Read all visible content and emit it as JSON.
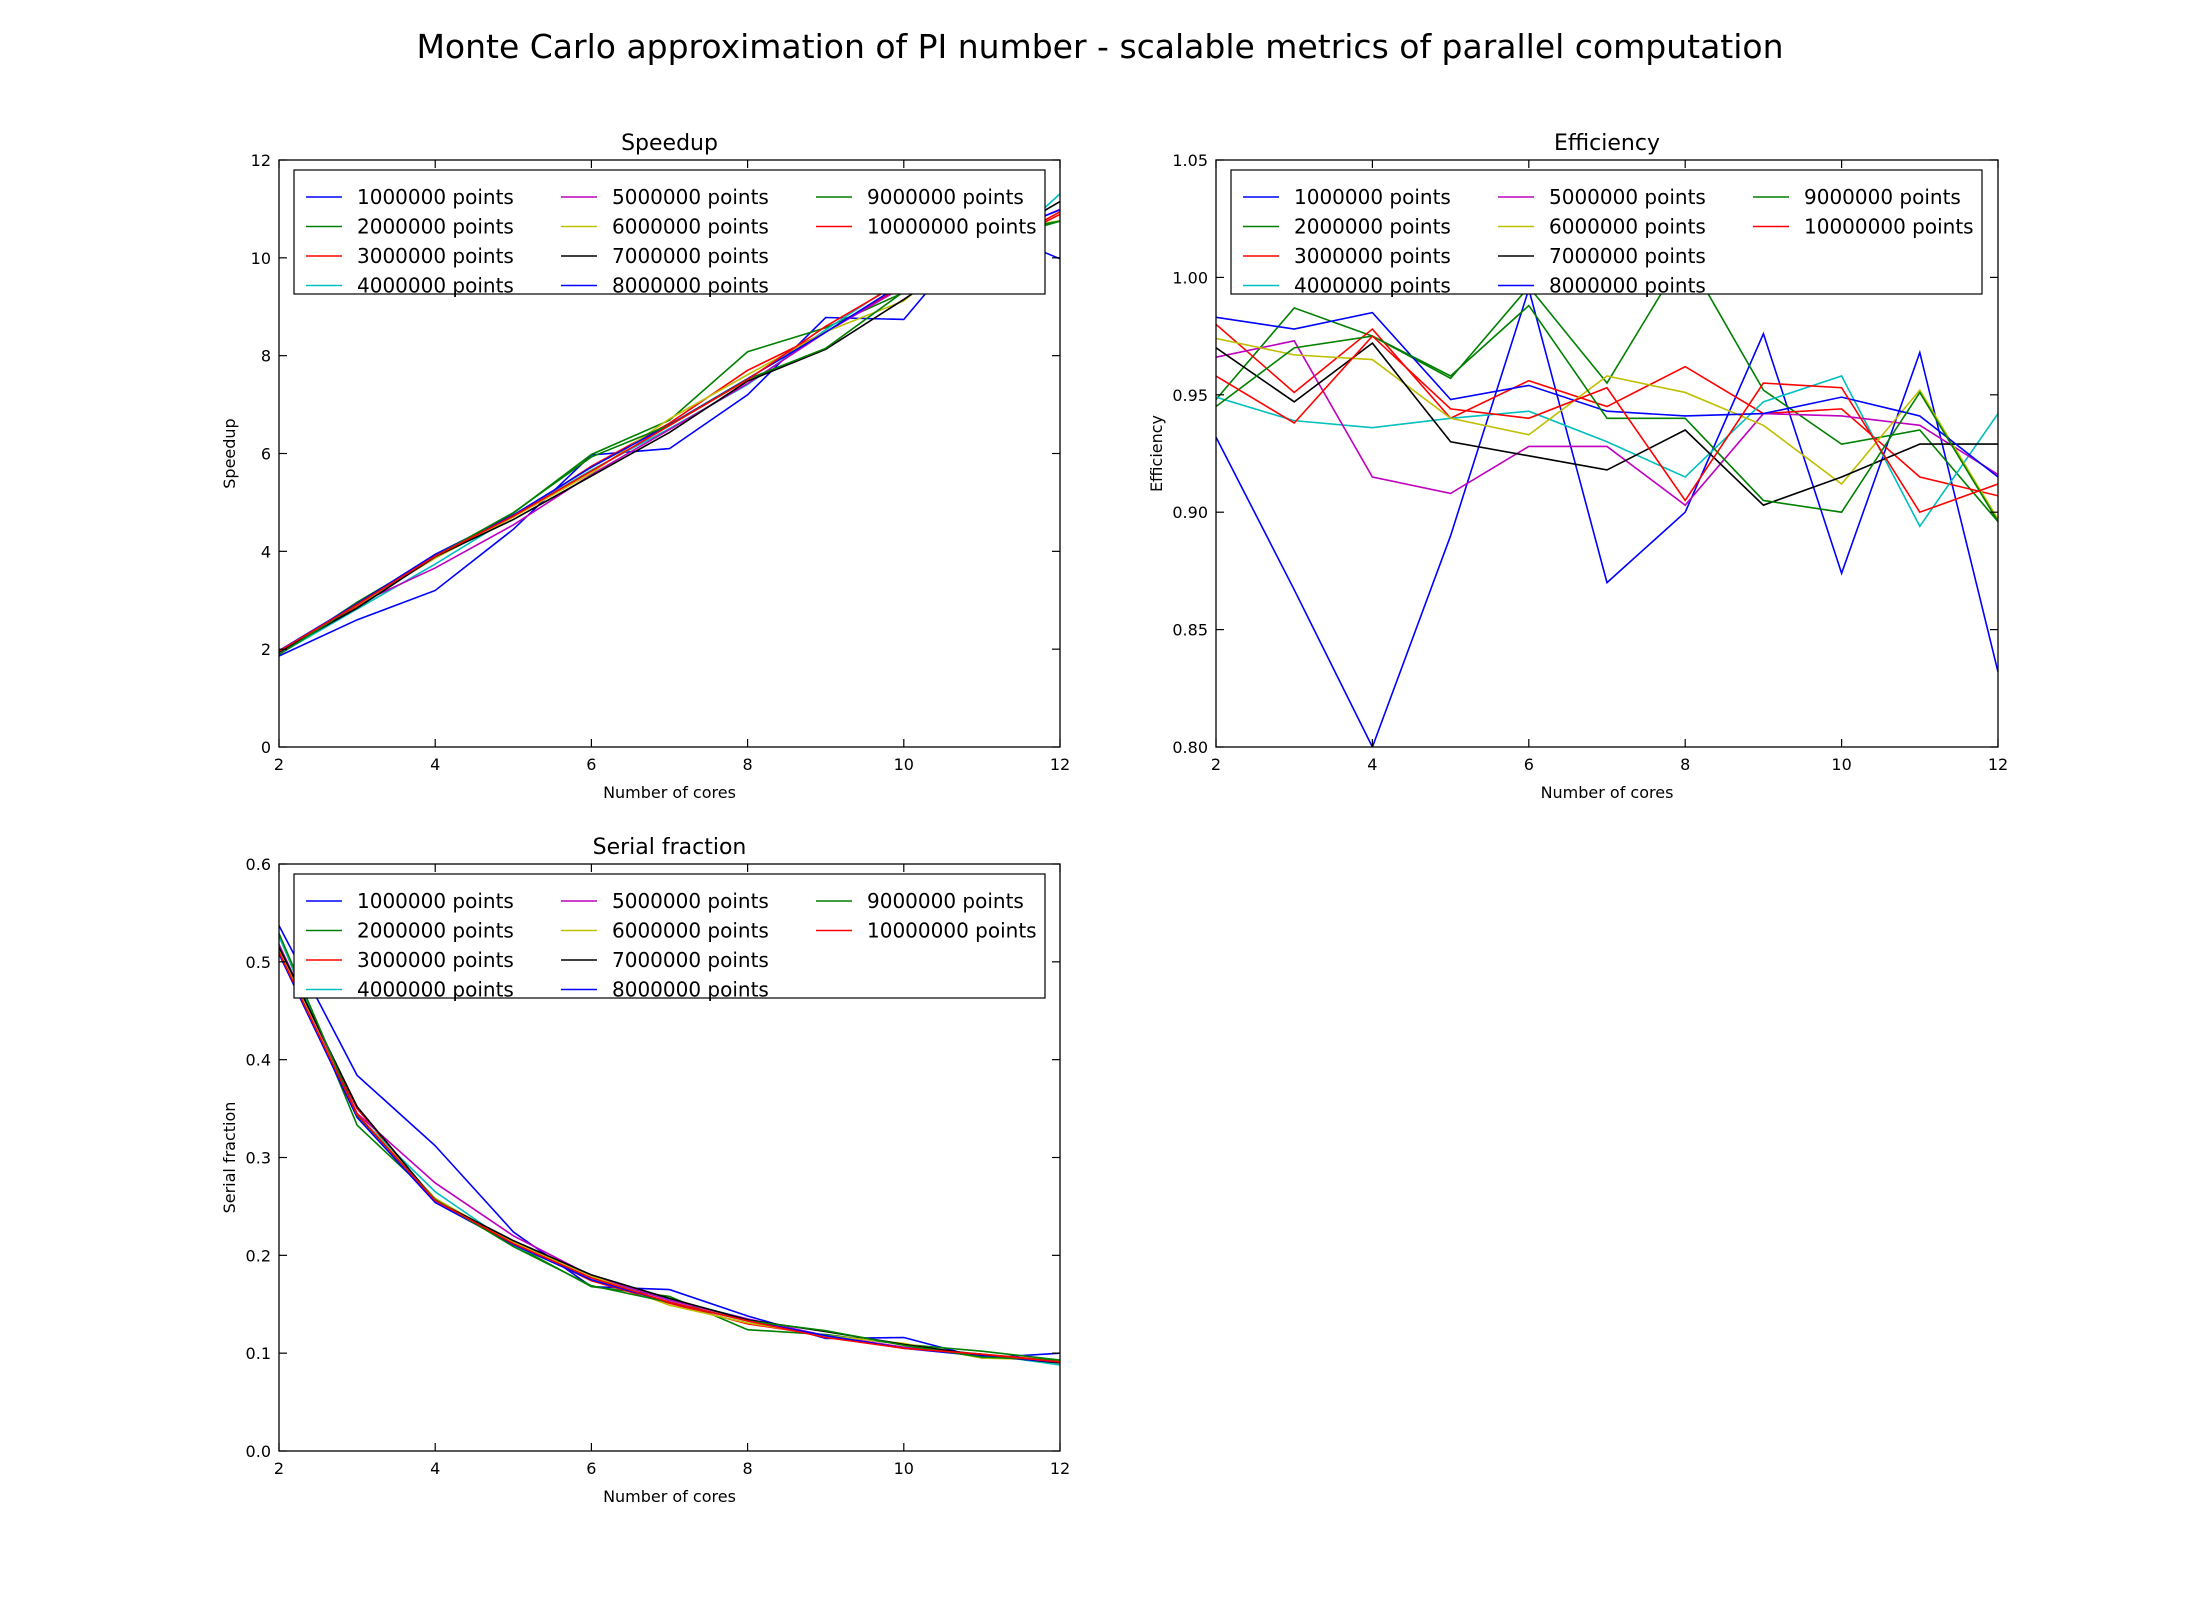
{
  "figure": {
    "title": "Monte Carlo approximation of PI number - scalable metrics of parallel computation"
  },
  "series_legend": [
    {
      "name": "1000000 points",
      "color": "#0000ff"
    },
    {
      "name": "2000000 points",
      "color": "#008000"
    },
    {
      "name": "3000000 points",
      "color": "#ff0000"
    },
    {
      "name": "4000000 points",
      "color": "#00bfbf"
    },
    {
      "name": "5000000 points",
      "color": "#bf00bf"
    },
    {
      "name": "6000000 points",
      "color": "#bfbf00"
    },
    {
      "name": "7000000 points",
      "color": "#000000"
    },
    {
      "name": "8000000 points",
      "color": "#0000ff"
    },
    {
      "name": "9000000 points",
      "color": "#008000"
    },
    {
      "name": "10000000 points",
      "color": "#ff0000"
    }
  ],
  "chart_data": [
    {
      "id": "speedup",
      "type": "line",
      "title": "Speedup",
      "xlabel": "Number of cores",
      "ylabel": "Speedup",
      "xlim": [
        2,
        12
      ],
      "ylim": [
        0,
        12
      ],
      "xticks": [
        "2",
        "4",
        "6",
        "8",
        "10",
        "12"
      ],
      "yticks": [
        "0",
        "2",
        "4",
        "6",
        "8",
        "10",
        "12"
      ],
      "grid": false,
      "legend": "upper-center, 3 columns",
      "x": [
        2,
        3,
        4,
        5,
        6,
        7,
        8,
        9,
        10,
        11,
        12
      ],
      "series": [
        {
          "name": "1000000 points",
          "color": "#0000ff",
          "values": [
            1.86,
            2.6,
            3.2,
            4.45,
            5.97,
            6.1,
            7.2,
            8.78,
            8.74,
            10.64,
            9.98
          ]
        },
        {
          "name": "2000000 points",
          "color": "#008000",
          "values": [
            1.9,
            2.96,
            3.9,
            4.78,
            5.98,
            6.68,
            8.08,
            8.57,
            9.29,
            10.29,
            10.75
          ]
        },
        {
          "name": "3000000 points",
          "color": "#ff0000",
          "values": [
            1.96,
            2.86,
            3.91,
            4.7,
            5.74,
            6.62,
            7.7,
            8.48,
            9.44,
            10.07,
            10.89
          ]
        },
        {
          "name": "4000000 points",
          "color": "#00bfbf",
          "values": [
            1.9,
            2.82,
            3.74,
            4.72,
            5.66,
            6.51,
            7.41,
            8.53,
            9.58,
            9.84,
            11.31
          ]
        },
        {
          "name": "5000000 points",
          "color": "#bf00bf",
          "values": [
            1.93,
            2.92,
            3.66,
            4.54,
            5.57,
            6.49,
            7.43,
            8.48,
            9.41,
            10.31,
            10.99
          ]
        },
        {
          "name": "6000000 points",
          "color": "#bfbf00",
          "values": [
            1.95,
            2.9,
            3.86,
            4.7,
            5.6,
            6.71,
            7.61,
            8.49,
            9.12,
            10.47,
            10.76
          ]
        },
        {
          "name": "7000000 points",
          "color": "#000000",
          "values": [
            1.94,
            2.84,
            3.89,
            4.65,
            5.54,
            6.43,
            7.48,
            8.13,
            9.15,
            10.22,
            11.15
          ]
        },
        {
          "name": "8000000 points",
          "color": "#0000ff",
          "values": [
            1.97,
            2.93,
            3.94,
            4.74,
            5.72,
            6.59,
            7.53,
            8.48,
            9.49,
            10.35,
            10.98
          ]
        },
        {
          "name": "9000000 points",
          "color": "#008000",
          "values": [
            1.89,
            2.91,
            3.9,
            4.79,
            5.93,
            6.58,
            7.52,
            8.15,
            9.31,
            10.46,
            10.75
          ]
        },
        {
          "name": "10000000 points",
          "color": "#ff0000",
          "values": [
            1.96,
            2.91,
            3.9,
            4.72,
            5.64,
            6.57,
            7.51,
            8.6,
            9.53,
            10.07,
            10.94
          ]
        }
      ]
    },
    {
      "id": "efficiency",
      "type": "line",
      "title": "Efficiency",
      "xlabel": "Number of cores",
      "ylabel": "Efficiency",
      "xlim": [
        2,
        12
      ],
      "ylim": [
        0.8,
        1.05
      ],
      "xticks": [
        "2",
        "4",
        "6",
        "8",
        "10",
        "12"
      ],
      "yticks": [
        "0.80",
        "0.85",
        "0.90",
        "0.95",
        "1.00",
        "1.05"
      ],
      "grid": false,
      "legend": "upper-center, 3 columns",
      "x": [
        2,
        3,
        4,
        5,
        6,
        7,
        8,
        9,
        10,
        11,
        12
      ],
      "series": [
        {
          "name": "1000000 points",
          "color": "#0000ff",
          "values": [
            0.932,
            0.867,
            0.8,
            0.89,
            0.995,
            0.87,
            0.9,
            0.976,
            0.874,
            0.968,
            0.832
          ]
        },
        {
          "name": "2000000 points",
          "color": "#008000",
          "values": [
            0.948,
            0.987,
            0.975,
            0.957,
            0.996,
            0.955,
            1.01,
            0.952,
            0.929,
            0.935,
            0.896
          ]
        },
        {
          "name": "3000000 points",
          "color": "#ff0000",
          "values": [
            0.98,
            0.951,
            0.978,
            0.94,
            0.956,
            0.945,
            0.962,
            0.942,
            0.944,
            0.915,
            0.907
          ]
        },
        {
          "name": "4000000 points",
          "color": "#00bfbf",
          "values": [
            0.949,
            0.939,
            0.936,
            0.94,
            0.943,
            0.93,
            0.915,
            0.947,
            0.958,
            0.894,
            0.942
          ]
        },
        {
          "name": "5000000 points",
          "color": "#bf00bf",
          "values": [
            0.966,
            0.973,
            0.915,
            0.908,
            0.928,
            0.928,
            0.903,
            0.942,
            0.941,
            0.937,
            0.916
          ]
        },
        {
          "name": "6000000 points",
          "color": "#bfbf00",
          "values": [
            0.974,
            0.967,
            0.965,
            0.94,
            0.933,
            0.958,
            0.951,
            0.937,
            0.912,
            0.952,
            0.897
          ]
        },
        {
          "name": "7000000 points",
          "color": "#000000",
          "values": [
            0.97,
            0.947,
            0.972,
            0.93,
            0.924,
            0.918,
            0.935,
            0.903,
            0.915,
            0.929,
            0.929
          ]
        },
        {
          "name": "8000000 points",
          "color": "#0000ff",
          "values": [
            0.983,
            0.978,
            0.985,
            0.948,
            0.954,
            0.943,
            0.941,
            0.942,
            0.949,
            0.941,
            0.915
          ]
        },
        {
          "name": "9000000 points",
          "color": "#008000",
          "values": [
            0.945,
            0.97,
            0.975,
            0.958,
            0.988,
            0.94,
            0.94,
            0.905,
            0.9,
            0.951,
            0.896
          ]
        },
        {
          "name": "10000000 points",
          "color": "#ff0000",
          "values": [
            0.958,
            0.938,
            0.975,
            0.944,
            0.94,
            0.953,
            0.905,
            0.955,
            0.953,
            0.9,
            0.912
          ]
        }
      ]
    },
    {
      "id": "serial-fraction",
      "type": "line",
      "title": "Serial fraction",
      "xlabel": "Number of cores",
      "ylabel": "Serial fraction",
      "xlim": [
        2,
        12
      ],
      "ylim": [
        0.0,
        0.6
      ],
      "xticks": [
        "2",
        "4",
        "6",
        "8",
        "10",
        "12"
      ],
      "yticks": [
        "0.0",
        "0.1",
        "0.2",
        "0.3",
        "0.4",
        "0.5",
        "0.6"
      ],
      "grid": false,
      "legend": "upper-center, 3 columns",
      "x": [
        2,
        3,
        4,
        5,
        6,
        7,
        8,
        9,
        10,
        11,
        12
      ],
      "series": [
        {
          "name": "1000000 points",
          "color": "#0000ff",
          "values": [
            0.537,
            0.384,
            0.312,
            0.224,
            0.168,
            0.165,
            0.138,
            0.115,
            0.116,
            0.095,
            0.1
          ]
        },
        {
          "name": "2000000 points",
          "color": "#008000",
          "values": [
            0.527,
            0.333,
            0.258,
            0.211,
            0.168,
            0.158,
            0.124,
            0.119,
            0.109,
            0.102,
            0.093
          ]
        },
        {
          "name": "3000000 points",
          "color": "#ff0000",
          "values": [
            0.51,
            0.35,
            0.256,
            0.213,
            0.174,
            0.151,
            0.13,
            0.118,
            0.106,
            0.099,
            0.092
          ]
        },
        {
          "name": "4000000 points",
          "color": "#00bfbf",
          "values": [
            0.526,
            0.343,
            0.265,
            0.21,
            0.177,
            0.155,
            0.135,
            0.117,
            0.106,
            0.099,
            0.088
          ]
        },
        {
          "name": "5000000 points",
          "color": "#bf00bf",
          "values": [
            0.518,
            0.345,
            0.274,
            0.22,
            0.179,
            0.154,
            0.135,
            0.118,
            0.106,
            0.097,
            0.091
          ]
        },
        {
          "name": "6000000 points",
          "color": "#bfbf00",
          "values": [
            0.513,
            0.344,
            0.258,
            0.213,
            0.179,
            0.149,
            0.131,
            0.118,
            0.11,
            0.095,
            0.093
          ]
        },
        {
          "name": "7000000 points",
          "color": "#000000",
          "values": [
            0.515,
            0.352,
            0.256,
            0.215,
            0.18,
            0.156,
            0.134,
            0.122,
            0.109,
            0.098,
            0.09
          ]
        },
        {
          "name": "8000000 points",
          "color": "#0000ff",
          "values": [
            0.508,
            0.341,
            0.254,
            0.211,
            0.175,
            0.152,
            0.133,
            0.118,
            0.105,
            0.097,
            0.091
          ]
        },
        {
          "name": "9000000 points",
          "color": "#008000",
          "values": [
            0.529,
            0.343,
            0.257,
            0.209,
            0.169,
            0.152,
            0.133,
            0.123,
            0.108,
            0.096,
            0.093
          ]
        },
        {
          "name": "10000000 points",
          "color": "#ff0000",
          "values": [
            0.51,
            0.344,
            0.256,
            0.212,
            0.177,
            0.152,
            0.133,
            0.116,
            0.105,
            0.099,
            0.091
          ]
        }
      ]
    }
  ]
}
